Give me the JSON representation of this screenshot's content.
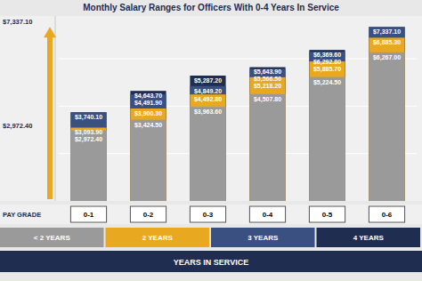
{
  "chart_data": {
    "type": "bar",
    "title": "Monthly Salary Ranges for Officers With 0-4 Years In Service",
    "xlabel": "PAY GRADE",
    "legend_title": "YEARS IN SERVICE",
    "categories": [
      "0-1",
      "0-2",
      "0-3",
      "0-4",
      "0-5",
      "0-6"
    ],
    "series": [
      {
        "name": "< 2 YEARS",
        "color": "#9a9a9a",
        "values": [
          2972.4,
          3424.5,
          3963.6,
          4507.8,
          5224.5,
          6267.0
        ],
        "value_labels": [
          "$2,972.40",
          "$3,424.50",
          "$3,963.60",
          "$4,507.80",
          "$5,224.50",
          "$6,267.00"
        ]
      },
      {
        "name": "2 YEARS",
        "color": "#E8A820",
        "values": [
          3093.9,
          3900.3,
          4492.8,
          5218.2,
          5885.7,
          6885.3
        ],
        "value_labels": [
          "$3,093.90",
          "$3,900.30",
          "$4,492.80",
          "$5,218.20",
          "$5,885.70",
          "$6,885.30"
        ]
      },
      {
        "name": "3 YEARS",
        "color": "#3a5080",
        "values": [
          3740.1,
          4491.9,
          4849.2,
          5566.5,
          6292.8,
          7337.1
        ],
        "value_labels": [
          null,
          "$4,491.90",
          "$4,849.20",
          "$5,566.50",
          "$6,292.80",
          null
        ]
      },
      {
        "name": "4 YEARS",
        "color": "#1e2d50",
        "values": [
          3740.1,
          4643.7,
          5287.2,
          5643.9,
          6369.6,
          7337.1
        ],
        "value_labels": [
          "$3,740.10",
          "$4,643.70",
          "$5,287.20",
          "$5,643.90",
          "$6,369.60",
          "$7,337.10"
        ]
      }
    ],
    "annotations": [
      {
        "text": "$7,337.10",
        "y": 7337.1
      },
      {
        "text": "$2,972.40",
        "y": 2972.4
      }
    ],
    "ylim": [
      0,
      7800
    ],
    "yticks": [
      2000,
      4000,
      6000
    ],
    "grid": true,
    "tick_labels": "x",
    "data_labels": true,
    "legend": "bottom"
  }
}
